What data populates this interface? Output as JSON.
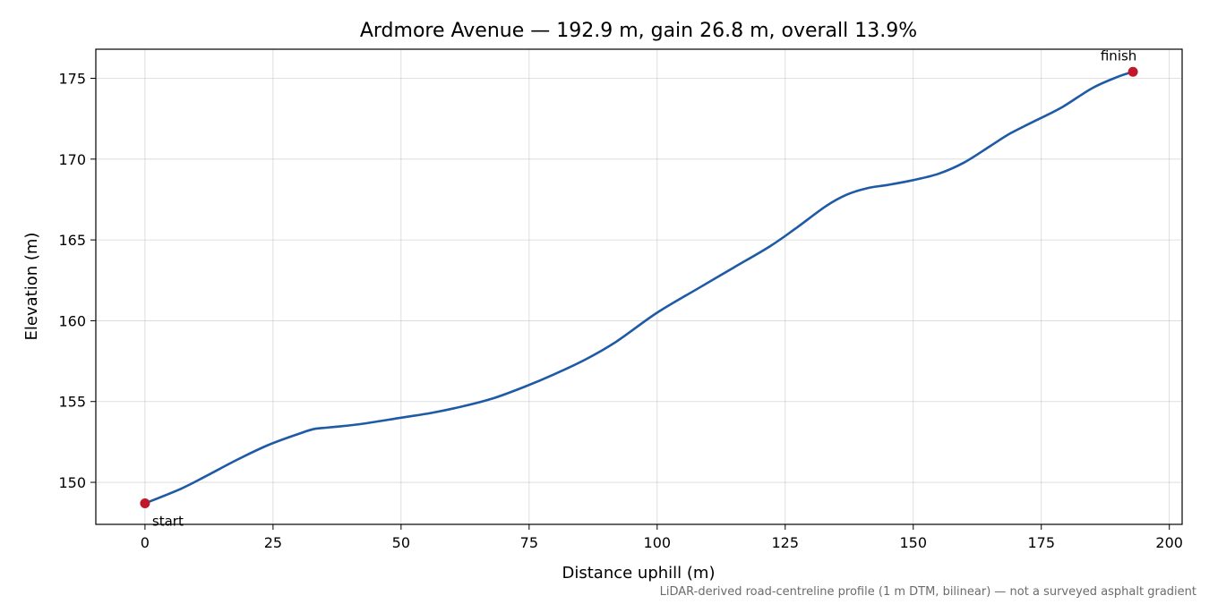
{
  "chart_data": {
    "type": "line",
    "title": "Ardmore Avenue — 192.9 m, gain 26.8 m, overall 13.9%",
    "xlabel": "Distance uphill (m)",
    "ylabel": "Elevation (m)",
    "xlim": [
      -9.6,
      202.5
    ],
    "ylim": [
      147.4,
      176.8
    ],
    "xticks": [
      0,
      25,
      50,
      75,
      100,
      125,
      150,
      175,
      200
    ],
    "yticks": [
      150,
      155,
      160,
      165,
      170,
      175
    ],
    "grid": true,
    "series": [
      {
        "color": "#1f5aa6",
        "x": [
          0,
          7,
          12,
          18,
          24,
          30,
          33,
          36,
          42,
          50,
          56,
          62,
          68,
          74,
          80,
          86,
          92,
          100,
          108,
          115,
          122,
          127,
          133,
          137,
          141,
          145,
          150,
          155,
          160,
          165,
          169,
          174,
          179,
          185,
          190,
          192.9
        ],
        "y": [
          148.7,
          149.6,
          150.4,
          151.4,
          152.3,
          153.0,
          153.3,
          153.4,
          153.6,
          154.0,
          154.3,
          154.7,
          155.2,
          155.9,
          156.7,
          157.6,
          158.7,
          160.5,
          162.0,
          163.3,
          164.6,
          165.7,
          167.1,
          167.8,
          168.2,
          168.4,
          168.7,
          169.1,
          169.8,
          170.8,
          171.6,
          172.4,
          173.2,
          174.4,
          175.1,
          175.4
        ]
      }
    ],
    "markers": [
      {
        "label": "start",
        "x": 0,
        "y": 148.7,
        "color": "#c0182a"
      },
      {
        "label": "finish",
        "x": 192.9,
        "y": 175.4,
        "color": "#c0182a"
      }
    ],
    "note": "LiDAR-derived road-centreline profile (1 m DTM, bilinear) — not a surveyed asphalt gradient"
  }
}
